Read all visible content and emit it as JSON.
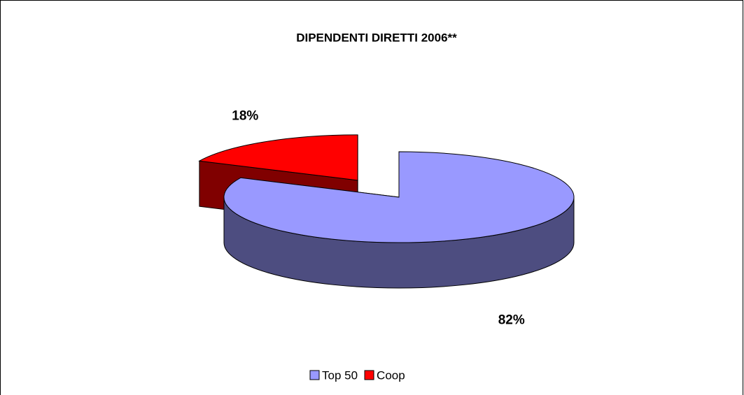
{
  "chart_data": {
    "type": "pie",
    "title": "DIPENDENTI DIRETTI 2006**",
    "categories": [
      "Top 50",
      "Coop"
    ],
    "values": [
      82,
      18
    ],
    "value_labels": [
      "82%",
      "18%"
    ],
    "colors": [
      "#9999ff",
      "#ff0000"
    ],
    "exploded": [
      false,
      true
    ],
    "legend": "bottom"
  }
}
